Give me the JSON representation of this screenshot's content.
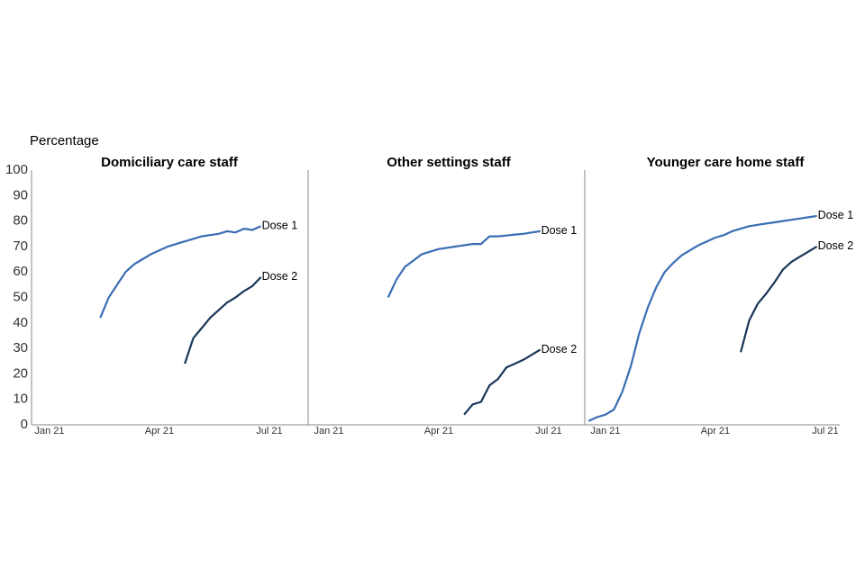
{
  "chart_data": [
    {
      "type": "line",
      "title": "Domiciliary care staff",
      "ylabel": "Percentage",
      "categories": [
        null,
        null,
        "Jan 21",
        null,
        null,
        null,
        null,
        null,
        null,
        null,
        null,
        null,
        null,
        null,
        null,
        "Apr 21",
        null,
        null,
        null,
        null,
        null,
        null,
        null,
        null,
        null,
        null,
        null,
        null,
        "Jul 21"
      ],
      "ylim": [
        0,
        100
      ],
      "yticks": [
        0,
        10,
        20,
        30,
        40,
        50,
        60,
        70,
        80,
        90,
        100
      ],
      "grid": false,
      "series": [
        {
          "name": "Dose 1",
          "color": "#3a6db4",
          "values": [
            null,
            null,
            null,
            null,
            null,
            null,
            null,
            null,
            42,
            50,
            55,
            60,
            63,
            65,
            67,
            68.5,
            70,
            71,
            72,
            73,
            74,
            74.5,
            75,
            76,
            75.5,
            77,
            76.5,
            78,
            null
          ]
        },
        {
          "name": "Dose 2",
          "color": "#1a3658",
          "values": [
            null,
            null,
            null,
            null,
            null,
            null,
            null,
            null,
            null,
            null,
            null,
            null,
            null,
            null,
            null,
            null,
            null,
            null,
            24,
            34,
            38,
            42,
            45,
            48,
            50,
            52.5,
            54.5,
            58,
            null
          ]
        }
      ]
    },
    {
      "type": "line",
      "title": "Other settings staff",
      "categories": [
        null,
        null,
        "Jan 21",
        null,
        null,
        null,
        null,
        null,
        null,
        null,
        null,
        null,
        null,
        null,
        null,
        "Apr 21",
        null,
        null,
        null,
        null,
        null,
        null,
        null,
        null,
        null,
        null,
        null,
        null,
        "Jul 21"
      ],
      "ylim": [
        0,
        100
      ],
      "grid": false,
      "series": [
        {
          "name": "Dose 1",
          "color": "#3a6db4",
          "values": [
            null,
            null,
            null,
            null,
            null,
            null,
            null,
            null,
            null,
            50,
            57,
            62,
            64.5,
            67,
            68,
            69,
            69.5,
            70,
            70.5,
            71,
            71,
            74,
            74,
            74.3,
            74.7,
            75,
            75.5,
            76,
            null
          ]
        },
        {
          "name": "Dose 2",
          "color": "#1a3658",
          "values": [
            null,
            null,
            null,
            null,
            null,
            null,
            null,
            null,
            null,
            null,
            null,
            null,
            null,
            null,
            null,
            null,
            null,
            null,
            4,
            8,
            9,
            15.5,
            18,
            22.5,
            24,
            25.5,
            27.5,
            29.5,
            null
          ]
        }
      ]
    },
    {
      "type": "line",
      "title": "Younger care home staff",
      "categories": [
        null,
        null,
        "Jan 21",
        null,
        null,
        null,
        null,
        null,
        null,
        null,
        null,
        null,
        null,
        null,
        null,
        "Apr 21",
        null,
        null,
        null,
        null,
        null,
        null,
        null,
        null,
        null,
        null,
        null,
        null,
        "Jul 21"
      ],
      "ylim": [
        0,
        100
      ],
      "grid": false,
      "series": [
        {
          "name": "Dose 1",
          "color": "#3a6db4",
          "values": [
            1.5,
            3,
            4,
            6,
            13,
            23,
            36,
            46,
            54,
            60,
            63.5,
            66.5,
            68.5,
            70.5,
            72,
            73.5,
            74.5,
            76,
            77,
            78,
            78.5,
            79,
            79.5,
            80,
            80.5,
            81,
            81.5,
            82,
            null
          ]
        },
        {
          "name": "Dose 2",
          "color": "#1a3658",
          "values": [
            null,
            null,
            null,
            null,
            null,
            null,
            null,
            null,
            null,
            null,
            null,
            null,
            null,
            null,
            null,
            null,
            null,
            null,
            28.5,
            41,
            47.5,
            51.5,
            56,
            61,
            64,
            66,
            68,
            70,
            null
          ]
        }
      ]
    }
  ]
}
